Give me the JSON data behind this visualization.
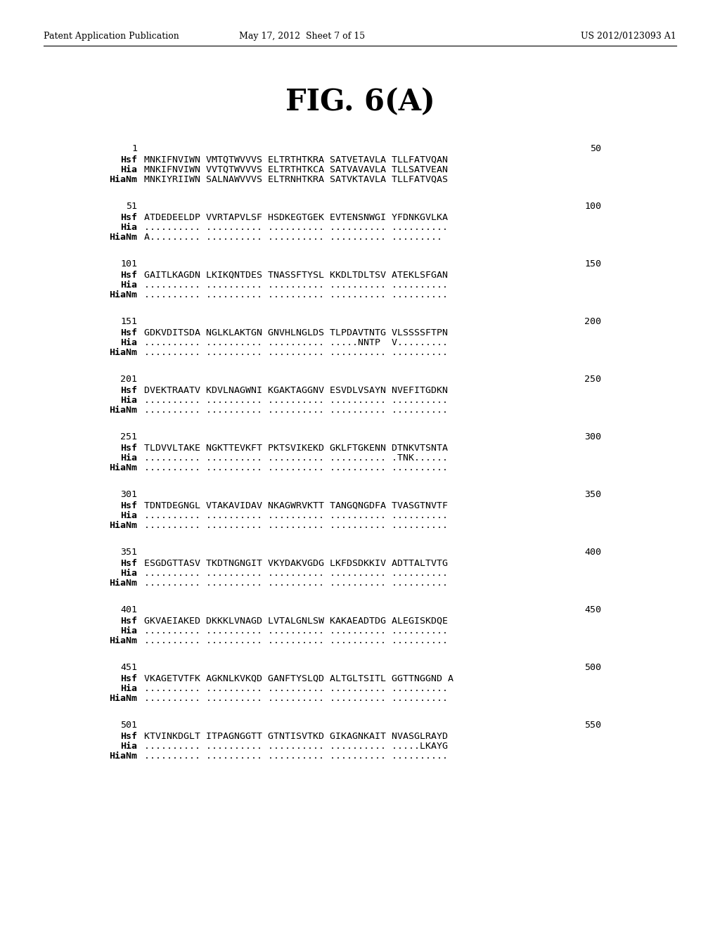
{
  "header_left": "Patent Application Publication",
  "header_mid": "May 17, 2012  Sheet 7 of 15",
  "header_right": "US 2012/0123093 A1",
  "title": "FIG. 6(A)",
  "background": "#ffffff",
  "sequences": [
    {
      "num_left": "1",
      "num_right": "50",
      "rows": [
        {
          "label": "Hsf",
          "seq": "MNKIFNVIWN VMTQTWVVVS ELTRTHTKRA SATVETAVLA TLLFATVQAN"
        },
        {
          "label": "Hia",
          "seq": "MNKIFNVIWN VVTQTWVVVS ELTRTHTKCA SATVAVAVLA TLLSATVEAN"
        },
        {
          "label": "HiaNm",
          "seq": "MNKIYRIIWN SALNAWVVVS ELTRNHTKRA SATVKTAVLA TLLFATVQAS"
        }
      ]
    },
    {
      "num_left": "51",
      "num_right": "100",
      "rows": [
        {
          "label": "Hsf",
          "seq": "ATDEDEELDP VVRTAPVLSF HSDKEGTGEK EVTENSNWGI YFDNKGVLKA"
        },
        {
          "label": "Hia",
          "seq": ".......... .......... .......... .......... .........."
        },
        {
          "label": "HiaNm",
          "seq": "A......... .......... .......... .......... ........."
        }
      ]
    },
    {
      "num_left": "101",
      "num_right": "150",
      "rows": [
        {
          "label": "Hsf",
          "seq": "GAITLKAGDN LKIKQNTDES TNASSFTYSL KKDLTDLTSV ATEKLSFGAN"
        },
        {
          "label": "Hia",
          "seq": ".......... .......... .......... .......... .........."
        },
        {
          "label": "HiaNm",
          "seq": ".......... .......... .......... .......... .........."
        }
      ]
    },
    {
      "num_left": "151",
      "num_right": "200",
      "rows": [
        {
          "label": "Hsf",
          "seq": "GDKVDITSDA NGLKLAKTGN GNVHLNGLDS TLPDAVTNTG VLSSSSFTPN"
        },
        {
          "label": "Hia",
          "seq": ".......... .......... .......... .....NNTP  V........."
        },
        {
          "label": "HiaNm",
          "seq": ".......... .......... .......... .......... .........."
        }
      ]
    },
    {
      "num_left": "201",
      "num_right": "250",
      "rows": [
        {
          "label": "Hsf",
          "seq": "DVEKTRAATV KDVLNAGWNI KGAKTAGGNV ESVDLVSAYN NVEFITGDKN"
        },
        {
          "label": "Hia",
          "seq": ".......... .......... .......... .......... .........."
        },
        {
          "label": "HiaNm",
          "seq": ".......... .......... .......... .......... .........."
        }
      ]
    },
    {
      "num_left": "251",
      "num_right": "300",
      "rows": [
        {
          "label": "Hsf",
          "seq": "TLDVVLTAKE NGKTTEVKFT PKTSVIKEKD GKLFTGKENN DTNKVTSNTA"
        },
        {
          "label": "Hia",
          "seq": ".......... .......... .......... .......... .TNK......"
        },
        {
          "label": "HiaNm",
          "seq": ".......... .......... .......... .......... .........."
        }
      ]
    },
    {
      "num_left": "301",
      "num_right": "350",
      "rows": [
        {
          "label": "Hsf",
          "seq": "TDNTDEGNGL VTAKAVIDAV NKAGWRVKTT TANGQNGDFA TVASGTNVTF"
        },
        {
          "label": "Hia",
          "seq": ".......... .......... .......... .......... .........."
        },
        {
          "label": "HiaNm",
          "seq": ".......... .......... .......... .......... .........."
        }
      ]
    },
    {
      "num_left": "351",
      "num_right": "400",
      "rows": [
        {
          "label": "Hsf",
          "seq": "ESGDGTTASV TKDTNGNGIT VKYDAKVGDG LKFDSDKKIV ADTTALTVTG"
        },
        {
          "label": "Hia",
          "seq": ".......... .......... .......... .......... .........."
        },
        {
          "label": "HiaNm",
          "seq": ".......... .......... .......... .......... .........."
        }
      ]
    },
    {
      "num_left": "401",
      "num_right": "450",
      "rows": [
        {
          "label": "Hsf",
          "seq": "GKVAEIAKED DKKKLVNAGD LVTALGNLSW KAKAEADTDG ALEGISKDQE"
        },
        {
          "label": "Hia",
          "seq": ".......... .......... .......... .......... .........."
        },
        {
          "label": "HiaNm",
          "seq": ".......... .......... .......... .......... .........."
        }
      ]
    },
    {
      "num_left": "451",
      "num_right": "500",
      "rows": [
        {
          "label": "Hsf",
          "seq": "VKAGETVTFK AGKNLKVKQD GANFTYSLQD ALTGLTSITL GGTTNGGND A"
        },
        {
          "label": "Hia",
          "seq": ".......... .......... .......... .......... .........."
        },
        {
          "label": "HiaNm",
          "seq": ".......... .......... .......... .......... .........."
        }
      ]
    },
    {
      "num_left": "501",
      "num_right": "550",
      "rows": [
        {
          "label": "Hsf",
          "seq": "KTVINKDGLT ITPAGNGGTT GTNTISVTKD GIKAGNKAIT NVASGLRAYD"
        },
        {
          "label": "Hia",
          "seq": ".......... .......... .......... .......... .....LKAYG"
        },
        {
          "label": "HiaNm",
          "seq": ".......... .......... .......... .......... .........."
        }
      ]
    }
  ]
}
